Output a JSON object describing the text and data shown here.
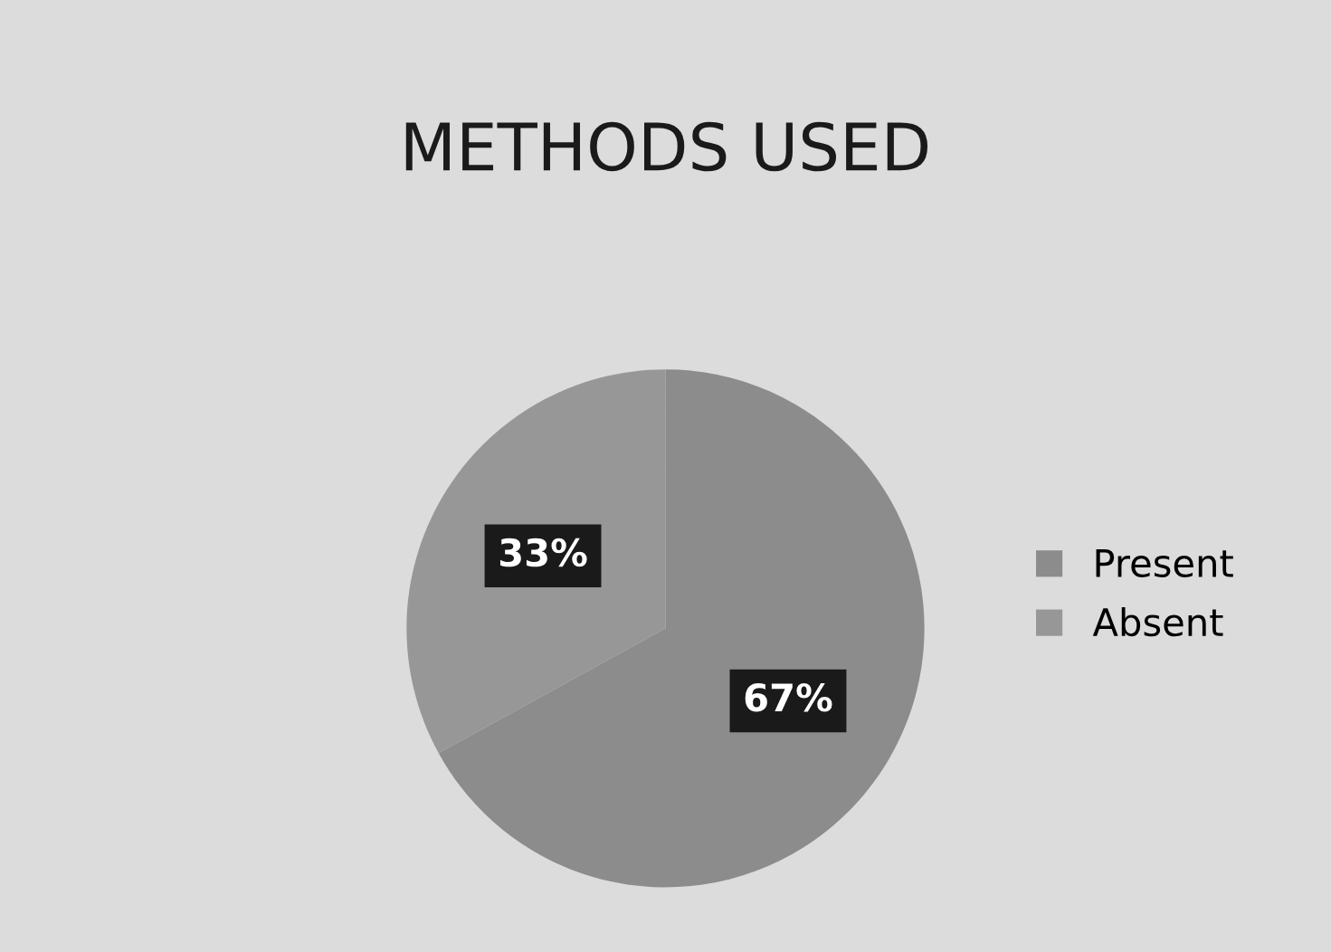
{
  "chart_data": {
    "type": "pie",
    "title": "METHODS USED",
    "categories": [
      "Present",
      "Absent"
    ],
    "values": [
      67,
      33
    ],
    "colors": [
      "#8c8c8c",
      "#979797"
    ],
    "value_labels": [
      "67%",
      "33%"
    ],
    "legend": "right"
  }
}
